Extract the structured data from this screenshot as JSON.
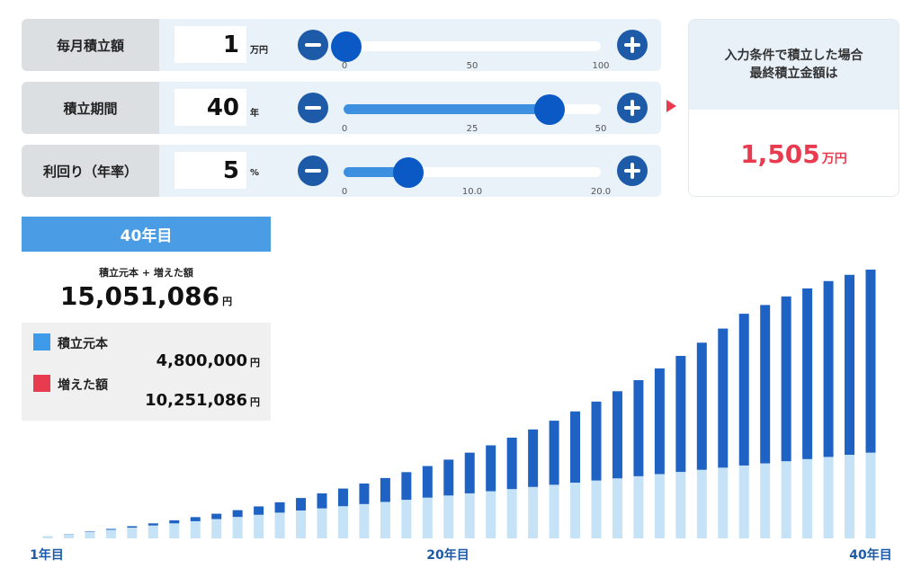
{
  "inputs": [
    {
      "label": "毎月積立額",
      "value": "1",
      "unit": "万円",
      "ticks": [
        "0",
        "50",
        "100"
      ],
      "min": 0,
      "max": 100,
      "current": 1
    },
    {
      "label": "積立期間",
      "value": "40",
      "unit": "年",
      "ticks": [
        "0",
        "25",
        "50"
      ],
      "min": 0,
      "max": 50,
      "current": 40
    },
    {
      "label": "利回り（年率）",
      "value": "5",
      "unit": "%",
      "ticks": [
        "0",
        "10.0",
        "20.0"
      ],
      "min": 0,
      "max": 20,
      "current": 5
    }
  ],
  "result": {
    "line1": "入力条件で積立した場合",
    "line2": "最終積立金額は",
    "value": "1,505",
    "unit": "万円"
  },
  "summary": {
    "year": "40年目",
    "total_label": "積立元本 + 増えた額",
    "total_value": "15,051,086",
    "yen": "円",
    "principal_label": "積立元本",
    "principal_value": "4,800,000",
    "gain_label": "増えた額",
    "gain_value": "10,251,086"
  },
  "colors": {
    "principal": "#c5e2f7",
    "gain": "#1e63c4",
    "accent_red": "#e83b4f",
    "legend_blue": "#3d9be9"
  },
  "chart_data": {
    "type": "bar",
    "stacked": true,
    "unit": "円",
    "x_labels": [
      "1年目",
      "20年目",
      "40年目"
    ],
    "years": [
      1,
      2,
      3,
      4,
      5,
      6,
      7,
      8,
      9,
      10,
      11,
      12,
      13,
      14,
      15,
      16,
      17,
      18,
      19,
      20,
      21,
      22,
      23,
      24,
      25,
      26,
      27,
      28,
      29,
      30,
      31,
      32,
      33,
      34,
      35,
      36,
      37,
      38,
      39,
      40
    ],
    "series": [
      {
        "name": "積立元本",
        "values": [
          120000,
          240000,
          360000,
          480000,
          600000,
          720000,
          840000,
          960000,
          1080000,
          1200000,
          1320000,
          1440000,
          1560000,
          1680000,
          1800000,
          1920000,
          2040000,
          2160000,
          2280000,
          2400000,
          2520000,
          2640000,
          2760000,
          2880000,
          3000000,
          3120000,
          3240000,
          3360000,
          3480000,
          3600000,
          3720000,
          3840000,
          3960000,
          4080000,
          4200000,
          4320000,
          4440000,
          4560000,
          4680000,
          4800000
        ]
      },
      {
        "name": "増えた額",
        "values": [
          3000,
          12000,
          27000,
          50000,
          80000,
          120000,
          170000,
          230000,
          300000,
          380000,
          470000,
          580000,
          700000,
          840000,
          990000,
          1150000,
          1340000,
          1550000,
          1770000,
          2010000,
          2280000,
          2570000,
          2880000,
          3220000,
          3590000,
          3990000,
          4420000,
          4880000,
          5380000,
          5920000,
          6500000,
          7120000,
          7790000,
          8500000,
          8870000,
          9230000,
          9560000,
          9850000,
          10080000,
          10251086
        ]
      }
    ],
    "ylim": [
      0,
      15500000
    ]
  }
}
